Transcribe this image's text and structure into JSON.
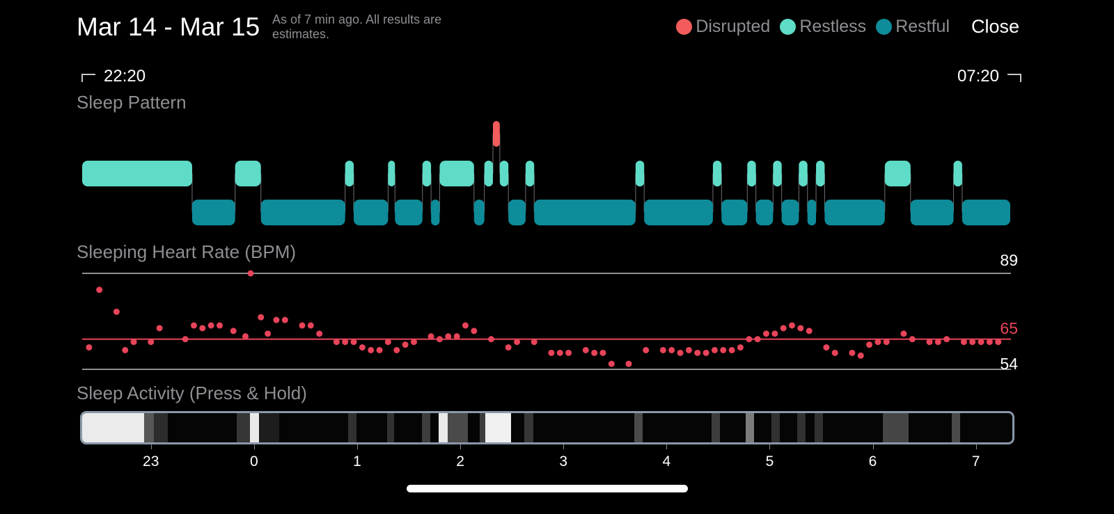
{
  "header": {
    "title": "Mar 14 - Mar 15",
    "subtitle": "As of 7 min ago. All results are estimates.",
    "close_label": "Close"
  },
  "legend": [
    {
      "label": "Disrupted",
      "color": "#f25c5c"
    },
    {
      "label": "Restless",
      "color": "#5fdcc8"
    },
    {
      "label": "Restful",
      "color": "#0e8c9a"
    }
  ],
  "range": {
    "start": "22:20",
    "end": "07:20"
  },
  "sections": {
    "sleep_pattern": "Sleep Pattern",
    "heart_rate": "Sleeping Heart Rate (BPM)",
    "activity": "Sleep Activity (Press & Hold)"
  },
  "heart_rate": {
    "max_label": "89",
    "avg_label": "65",
    "min_label": "54",
    "line_color": "#e8445a"
  },
  "x_axis": {
    "labels": [
      "23",
      "0",
      "1",
      "2",
      "3",
      "4",
      "5",
      "6",
      "7"
    ]
  },
  "sleep_pattern": {
    "stages": [
      {
        "stage": "restless",
        "start": "22:20",
        "end": "23:24"
      },
      {
        "stage": "restful",
        "start": "23:24",
        "end": "23:49"
      },
      {
        "stage": "restless",
        "start": "23:49",
        "end": "00:04"
      },
      {
        "stage": "restful",
        "start": "00:04",
        "end": "00:53"
      },
      {
        "stage": "restless",
        "start": "00:53",
        "end": "00:58"
      },
      {
        "stage": "restful",
        "start": "00:58",
        "end": "01:18"
      },
      {
        "stage": "restless",
        "start": "01:18",
        "end": "01:22"
      },
      {
        "stage": "restful",
        "start": "01:22",
        "end": "01:38"
      },
      {
        "stage": "restless",
        "start": "01:38",
        "end": "01:43"
      },
      {
        "stage": "restful",
        "start": "01:43",
        "end": "01:48"
      },
      {
        "stage": "restless",
        "start": "01:48",
        "end": "02:08"
      },
      {
        "stage": "restful",
        "start": "02:08",
        "end": "02:14"
      },
      {
        "stage": "restless",
        "start": "02:14",
        "end": "02:19"
      },
      {
        "stage": "disrupted",
        "start": "02:19",
        "end": "02:23"
      },
      {
        "stage": "restless",
        "start": "02:23",
        "end": "02:28"
      },
      {
        "stage": "restful",
        "start": "02:28",
        "end": "02:38"
      },
      {
        "stage": "restless",
        "start": "02:38",
        "end": "02:43"
      },
      {
        "stage": "restful",
        "start": "02:43",
        "end": "03:42"
      },
      {
        "stage": "restless",
        "start": "03:42",
        "end": "03:47"
      },
      {
        "stage": "restful",
        "start": "03:47",
        "end": "04:27"
      },
      {
        "stage": "restless",
        "start": "04:27",
        "end": "04:32"
      },
      {
        "stage": "restful",
        "start": "04:32",
        "end": "04:47"
      },
      {
        "stage": "restless",
        "start": "04:47",
        "end": "04:52"
      },
      {
        "stage": "restful",
        "start": "04:52",
        "end": "05:02"
      },
      {
        "stage": "restless",
        "start": "05:02",
        "end": "05:07"
      },
      {
        "stage": "restful",
        "start": "05:07",
        "end": "05:17"
      },
      {
        "stage": "restless",
        "start": "05:17",
        "end": "05:22"
      },
      {
        "stage": "restful",
        "start": "05:22",
        "end": "05:27"
      },
      {
        "stage": "restless",
        "start": "05:27",
        "end": "05:32"
      },
      {
        "stage": "restful",
        "start": "05:32",
        "end": "06:07"
      },
      {
        "stage": "restless",
        "start": "06:07",
        "end": "06:22"
      },
      {
        "stage": "restful",
        "start": "06:22",
        "end": "06:47"
      },
      {
        "stage": "restless",
        "start": "06:47",
        "end": "06:52"
      },
      {
        "stage": "restful",
        "start": "06:52",
        "end": "07:20"
      }
    ]
  },
  "heart_rate_points": [
    {
      "t": "22:24",
      "bpm": 62
    },
    {
      "t": "22:30",
      "bpm": 83
    },
    {
      "t": "22:40",
      "bpm": 75
    },
    {
      "t": "22:45",
      "bpm": 61
    },
    {
      "t": "22:50",
      "bpm": 64
    },
    {
      "t": "23:00",
      "bpm": 64
    },
    {
      "t": "23:05",
      "bpm": 69
    },
    {
      "t": "23:20",
      "bpm": 65
    },
    {
      "t": "23:25",
      "bpm": 70
    },
    {
      "t": "23:30",
      "bpm": 69
    },
    {
      "t": "23:35",
      "bpm": 70
    },
    {
      "t": "23:40",
      "bpm": 70
    },
    {
      "t": "23:48",
      "bpm": 68
    },
    {
      "t": "23:55",
      "bpm": 66
    },
    {
      "t": "23:58",
      "bpm": 89
    },
    {
      "t": "00:04",
      "bpm": 73
    },
    {
      "t": "00:08",
      "bpm": 67
    },
    {
      "t": "00:13",
      "bpm": 72
    },
    {
      "t": "00:18",
      "bpm": 72
    },
    {
      "t": "00:28",
      "bpm": 70
    },
    {
      "t": "00:33",
      "bpm": 70
    },
    {
      "t": "00:38",
      "bpm": 67
    },
    {
      "t": "00:48",
      "bpm": 64
    },
    {
      "t": "00:53",
      "bpm": 64
    },
    {
      "t": "00:58",
      "bpm": 64
    },
    {
      "t": "01:03",
      "bpm": 62
    },
    {
      "t": "01:08",
      "bpm": 61
    },
    {
      "t": "01:13",
      "bpm": 61
    },
    {
      "t": "01:18",
      "bpm": 64
    },
    {
      "t": "01:23",
      "bpm": 61
    },
    {
      "t": "01:28",
      "bpm": 63
    },
    {
      "t": "01:33",
      "bpm": 64
    },
    {
      "t": "01:43",
      "bpm": 66
    },
    {
      "t": "01:48",
      "bpm": 65
    },
    {
      "t": "01:53",
      "bpm": 66
    },
    {
      "t": "01:58",
      "bpm": 66
    },
    {
      "t": "02:03",
      "bpm": 70
    },
    {
      "t": "02:08",
      "bpm": 68
    },
    {
      "t": "02:18",
      "bpm": 65
    },
    {
      "t": "02:28",
      "bpm": 62
    },
    {
      "t": "02:33",
      "bpm": 64
    },
    {
      "t": "02:43",
      "bpm": 64
    },
    {
      "t": "02:53",
      "bpm": 60
    },
    {
      "t": "02:58",
      "bpm": 60
    },
    {
      "t": "03:03",
      "bpm": 60
    },
    {
      "t": "03:13",
      "bpm": 61
    },
    {
      "t": "03:18",
      "bpm": 60
    },
    {
      "t": "03:23",
      "bpm": 60
    },
    {
      "t": "03:28",
      "bpm": 56
    },
    {
      "t": "03:38",
      "bpm": 56
    },
    {
      "t": "03:48",
      "bpm": 61
    },
    {
      "t": "03:58",
      "bpm": 61
    },
    {
      "t": "04:03",
      "bpm": 61
    },
    {
      "t": "04:08",
      "bpm": 60
    },
    {
      "t": "04:13",
      "bpm": 61
    },
    {
      "t": "04:18",
      "bpm": 60
    },
    {
      "t": "04:23",
      "bpm": 60
    },
    {
      "t": "04:28",
      "bpm": 61
    },
    {
      "t": "04:33",
      "bpm": 61
    },
    {
      "t": "04:38",
      "bpm": 61
    },
    {
      "t": "04:43",
      "bpm": 62
    },
    {
      "t": "04:48",
      "bpm": 65
    },
    {
      "t": "04:53",
      "bpm": 65
    },
    {
      "t": "04:58",
      "bpm": 67
    },
    {
      "t": "05:03",
      "bpm": 67
    },
    {
      "t": "05:08",
      "bpm": 69
    },
    {
      "t": "05:13",
      "bpm": 70
    },
    {
      "t": "05:18",
      "bpm": 69
    },
    {
      "t": "05:23",
      "bpm": 68
    },
    {
      "t": "05:33",
      "bpm": 62
    },
    {
      "t": "05:38",
      "bpm": 60
    },
    {
      "t": "05:48",
      "bpm": 60
    },
    {
      "t": "05:53",
      "bpm": 59
    },
    {
      "t": "05:58",
      "bpm": 63
    },
    {
      "t": "06:03",
      "bpm": 64
    },
    {
      "t": "06:08",
      "bpm": 64
    },
    {
      "t": "06:18",
      "bpm": 67
    },
    {
      "t": "06:23",
      "bpm": 65
    },
    {
      "t": "06:33",
      "bpm": 64
    },
    {
      "t": "06:38",
      "bpm": 64
    },
    {
      "t": "06:43",
      "bpm": 65
    },
    {
      "t": "06:53",
      "bpm": 64
    },
    {
      "t": "06:58",
      "bpm": 64
    },
    {
      "t": "07:03",
      "bpm": 64
    },
    {
      "t": "07:08",
      "bpm": 64
    },
    {
      "t": "07:13",
      "bpm": 64
    }
  ],
  "activity": [
    {
      "start": "22:20",
      "end": "22:56",
      "level": 0.96
    },
    {
      "start": "22:56",
      "end": "23:02",
      "level": 0.35
    },
    {
      "start": "23:02",
      "end": "23:10",
      "level": 0.18
    },
    {
      "start": "23:50",
      "end": "23:58",
      "level": 0.22
    },
    {
      "start": "23:58",
      "end": "00:03",
      "level": 0.95
    },
    {
      "start": "00:03",
      "end": "00:15",
      "level": 0.12
    },
    {
      "start": "00:55",
      "end": "01:00",
      "level": 0.2
    },
    {
      "start": "01:18",
      "end": "01:22",
      "level": 0.2
    },
    {
      "start": "01:38",
      "end": "01:43",
      "level": 0.25
    },
    {
      "start": "01:48",
      "end": "01:53",
      "level": 0.95
    },
    {
      "start": "01:53",
      "end": "02:05",
      "level": 0.3
    },
    {
      "start": "02:12",
      "end": "02:15",
      "level": 0.25
    },
    {
      "start": "02:15",
      "end": "02:30",
      "level": 0.98
    },
    {
      "start": "02:38",
      "end": "02:43",
      "level": 0.22
    },
    {
      "start": "03:42",
      "end": "03:47",
      "level": 0.3
    },
    {
      "start": "04:27",
      "end": "04:32",
      "level": 0.25
    },
    {
      "start": "04:47",
      "end": "04:52",
      "level": 0.5
    },
    {
      "start": "05:02",
      "end": "05:07",
      "level": 0.2
    },
    {
      "start": "05:17",
      "end": "05:22",
      "level": 0.2
    },
    {
      "start": "05:27",
      "end": "05:32",
      "level": 0.2
    },
    {
      "start": "06:07",
      "end": "06:22",
      "level": 0.28
    },
    {
      "start": "06:47",
      "end": "06:52",
      "level": 0.3
    }
  ]
}
